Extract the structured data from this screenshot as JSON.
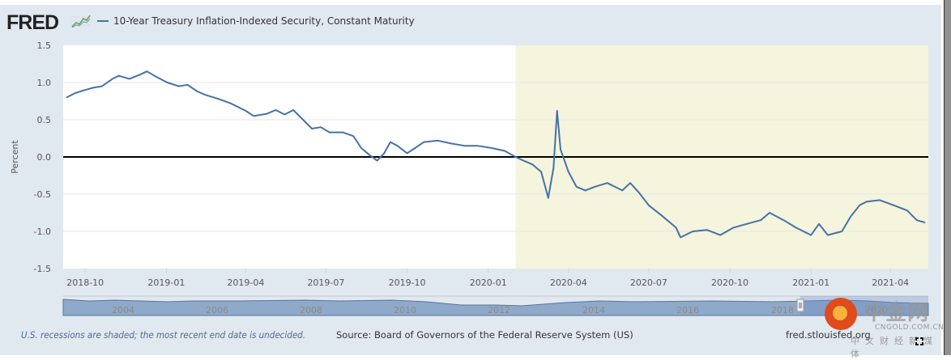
{
  "header": {
    "logo_text": "FRED",
    "logo_icon": "line-chart-icon",
    "legend_label": "10-Year Treasury Inflation-Indexed Security, Constant Maturity",
    "series_color": "#4572a7"
  },
  "footer": {
    "recession_note": "U.S. recessions are shaded; the most recent end date is undecided.",
    "source": "Source: Board of Governors of the Federal Reserve System (US)",
    "url": "fred.stlouisfed.org"
  },
  "watermark": {
    "name": "中金网",
    "url": "CNGOLD.COM.CN",
    "subtitle": "中文财经新媒体"
  },
  "navigator": {
    "year_labels": [
      "2004",
      "2006",
      "2008",
      "2010",
      "2012",
      "2014",
      "2016",
      "2018",
      "2020"
    ]
  },
  "chart_data": {
    "type": "line",
    "title": "10-Year Treasury Inflation-Indexed Security, Constant Maturity",
    "xlabel": "",
    "ylabel": "Percent",
    "ylim": [
      -1.5,
      1.5
    ],
    "yticks": [
      "1.5",
      "1.0",
      "0.5",
      "0.0",
      "-0.5",
      "-1.0",
      "-1.5"
    ],
    "xticks": [
      "2018-10",
      "2019-01",
      "2019-04",
      "2019-07",
      "2019-10",
      "2020-01",
      "2020-04",
      "2020-07",
      "2020-10",
      "2021-01",
      "2021-04"
    ],
    "grid": true,
    "legend": "top-left",
    "recession": {
      "start": "2020-02",
      "end": "undecided",
      "color": "#f5f4dc"
    },
    "colors": {
      "line": "#4572a7",
      "zero_line": "#000000",
      "grid": "#e6e6e6"
    },
    "series": [
      {
        "name": "10-Year Treasury Inflation-Indexed Security, Constant Maturity",
        "points": [
          [
            "2018-09-10",
            0.8
          ],
          [
            "2018-09-20",
            0.86
          ],
          [
            "2018-10-01",
            0.9
          ],
          [
            "2018-10-10",
            0.93
          ],
          [
            "2018-10-20",
            0.95
          ],
          [
            "2018-11-01",
            1.05
          ],
          [
            "2018-11-08",
            1.09
          ],
          [
            "2018-11-20",
            1.05
          ],
          [
            "2018-12-01",
            1.1
          ],
          [
            "2018-12-10",
            1.15
          ],
          [
            "2018-12-20",
            1.08
          ],
          [
            "2019-01-02",
            1.0
          ],
          [
            "2019-01-15",
            0.95
          ],
          [
            "2019-01-25",
            0.97
          ],
          [
            "2019-02-05",
            0.88
          ],
          [
            "2019-02-15",
            0.83
          ],
          [
            "2019-03-01",
            0.78
          ],
          [
            "2019-03-15",
            0.72
          ],
          [
            "2019-04-01",
            0.62
          ],
          [
            "2019-04-10",
            0.55
          ],
          [
            "2019-04-25",
            0.58
          ],
          [
            "2019-05-05",
            0.63
          ],
          [
            "2019-05-15",
            0.57
          ],
          [
            "2019-05-25",
            0.63
          ],
          [
            "2019-06-05",
            0.5
          ],
          [
            "2019-06-15",
            0.38
          ],
          [
            "2019-06-25",
            0.4
          ],
          [
            "2019-07-05",
            0.33
          ],
          [
            "2019-07-20",
            0.33
          ],
          [
            "2019-08-01",
            0.28
          ],
          [
            "2019-08-10",
            0.12
          ],
          [
            "2019-08-20",
            0.02
          ],
          [
            "2019-08-28",
            -0.05
          ],
          [
            "2019-09-05",
            0.05
          ],
          [
            "2019-09-12",
            0.2
          ],
          [
            "2019-09-20",
            0.15
          ],
          [
            "2019-10-01",
            0.05
          ],
          [
            "2019-10-10",
            0.12
          ],
          [
            "2019-10-20",
            0.2
          ],
          [
            "2019-11-05",
            0.22
          ],
          [
            "2019-11-20",
            0.18
          ],
          [
            "2019-12-05",
            0.15
          ],
          [
            "2019-12-20",
            0.15
          ],
          [
            "2020-01-05",
            0.12
          ],
          [
            "2020-01-20",
            0.08
          ],
          [
            "2020-02-01",
            0.0
          ],
          [
            "2020-02-10",
            -0.05
          ],
          [
            "2020-02-20",
            -0.1
          ],
          [
            "2020-03-01",
            -0.2
          ],
          [
            "2020-03-09",
            -0.55
          ],
          [
            "2020-03-15",
            -0.15
          ],
          [
            "2020-03-19",
            0.62
          ],
          [
            "2020-03-23",
            0.1
          ],
          [
            "2020-04-01",
            -0.2
          ],
          [
            "2020-04-10",
            -0.4
          ],
          [
            "2020-04-20",
            -0.45
          ],
          [
            "2020-05-01",
            -0.4
          ],
          [
            "2020-05-15",
            -0.35
          ],
          [
            "2020-06-01",
            -0.45
          ],
          [
            "2020-06-10",
            -0.35
          ],
          [
            "2020-06-20",
            -0.48
          ],
          [
            "2020-07-01",
            -0.65
          ],
          [
            "2020-07-15",
            -0.78
          ],
          [
            "2020-08-01",
            -0.95
          ],
          [
            "2020-08-06",
            -1.08
          ],
          [
            "2020-08-20",
            -1.0
          ],
          [
            "2020-09-05",
            -0.98
          ],
          [
            "2020-09-20",
            -1.05
          ],
          [
            "2020-10-05",
            -0.95
          ],
          [
            "2020-10-20",
            -0.9
          ],
          [
            "2020-11-05",
            -0.85
          ],
          [
            "2020-11-15",
            -0.75
          ],
          [
            "2020-12-01",
            -0.85
          ],
          [
            "2020-12-15",
            -0.95
          ],
          [
            "2021-01-01",
            -1.05
          ],
          [
            "2021-01-10",
            -0.9
          ],
          [
            "2021-01-20",
            -1.05
          ],
          [
            "2021-02-05",
            -1.0
          ],
          [
            "2021-02-15",
            -0.8
          ],
          [
            "2021-02-25",
            -0.65
          ],
          [
            "2021-03-05",
            -0.6
          ],
          [
            "2021-03-20",
            -0.58
          ],
          [
            "2021-04-05",
            -0.65
          ],
          [
            "2021-04-20",
            -0.72
          ],
          [
            "2021-05-01",
            -0.85
          ],
          [
            "2021-05-10",
            -0.88
          ]
        ]
      }
    ]
  }
}
